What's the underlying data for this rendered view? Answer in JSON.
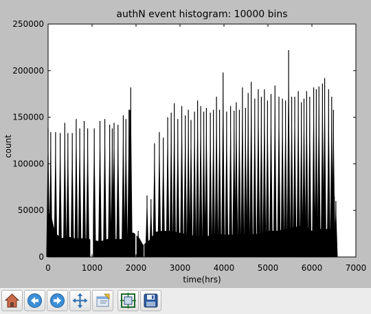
{
  "chart_data": {
    "type": "bar",
    "title": "authN event histogram: 10000 bins",
    "xlabel": "time(hrs)",
    "ylabel": "count",
    "xlim": [
      0,
      7000
    ],
    "ylim": [
      0,
      250000
    ],
    "xticks": [
      0,
      1000,
      2000,
      3000,
      4000,
      5000,
      6000,
      7000
    ],
    "yticks": [
      0,
      50000,
      100000,
      150000,
      200000,
      250000
    ],
    "xtick_labels": [
      "0",
      "1000",
      "2000",
      "3000",
      "4000",
      "5000",
      "6000",
      "7000"
    ],
    "ytick_labels": [
      "0",
      "50000",
      "100000",
      "150000",
      "200000",
      "250000"
    ],
    "grid": false,
    "legend": "none",
    "bar_color": "#000000",
    "data_end_x": 6560,
    "baseline": [
      [
        0,
        48000
      ],
      [
        70,
        45000
      ],
      [
        160,
        26000
      ],
      [
        300,
        20000
      ],
      [
        450,
        22000
      ],
      [
        600,
        20000
      ],
      [
        750,
        20000
      ],
      [
        900,
        20000
      ],
      [
        1000,
        18000
      ],
      [
        1200,
        17000
      ],
      [
        1400,
        20000
      ],
      [
        1600,
        19000
      ],
      [
        1800,
        20000
      ],
      [
        1900,
        26000
      ],
      [
        1950,
        26000
      ],
      [
        2080,
        20000
      ],
      [
        2160,
        13000
      ],
      [
        2300,
        18000
      ],
      [
        2450,
        27000
      ],
      [
        2600,
        28000
      ],
      [
        2800,
        28000
      ],
      [
        3000,
        26000
      ],
      [
        3200,
        24000
      ],
      [
        3400,
        22000
      ],
      [
        3600,
        22000
      ],
      [
        3800,
        25000
      ],
      [
        4000,
        24000
      ],
      [
        4200,
        24000
      ],
      [
        4400,
        25000
      ],
      [
        4600,
        24000
      ],
      [
        4800,
        25000
      ],
      [
        5000,
        28000
      ],
      [
        5200,
        28000
      ],
      [
        5400,
        30000
      ],
      [
        5600,
        32000
      ],
      [
        5800,
        34000
      ],
      [
        6000,
        28000
      ],
      [
        6200,
        30000
      ],
      [
        6400,
        30000
      ],
      [
        6560,
        30000
      ]
    ],
    "gaps": [
      [
        960,
        1020
      ],
      [
        1985,
        2010
      ],
      [
        2175,
        2190
      ]
    ],
    "peaks": [
      [
        0,
        138000
      ],
      [
        60,
        134000
      ],
      [
        170,
        134000
      ],
      [
        275,
        133000
      ],
      [
        380,
        144000
      ],
      [
        450,
        133000
      ],
      [
        550,
        133000
      ],
      [
        640,
        148000
      ],
      [
        720,
        138000
      ],
      [
        820,
        146000
      ],
      [
        900,
        138000
      ],
      [
        1050,
        138000
      ],
      [
        1180,
        146000
      ],
      [
        1290,
        148000
      ],
      [
        1400,
        142000
      ],
      [
        1460,
        138000
      ],
      [
        1500,
        144000
      ],
      [
        1590,
        142000
      ],
      [
        1710,
        152000
      ],
      [
        1770,
        148000
      ],
      [
        1840,
        158000
      ],
      [
        1860,
        158000
      ],
      [
        1880,
        182000
      ],
      [
        2050,
        28000
      ],
      [
        2250,
        66000
      ],
      [
        2340,
        62000
      ],
      [
        2420,
        122000
      ],
      [
        2530,
        134000
      ],
      [
        2620,
        128000
      ],
      [
        2720,
        150000
      ],
      [
        2800,
        155000
      ],
      [
        2870,
        165000
      ],
      [
        2950,
        148000
      ],
      [
        3040,
        162000
      ],
      [
        3120,
        152000
      ],
      [
        3190,
        158000
      ],
      [
        3250,
        147000
      ],
      [
        3330,
        156000
      ],
      [
        3400,
        168000
      ],
      [
        3470,
        162000
      ],
      [
        3540,
        156000
      ],
      [
        3600,
        160000
      ],
      [
        3690,
        155000
      ],
      [
        3760,
        158000
      ],
      [
        3830,
        172000
      ],
      [
        3900,
        158000
      ],
      [
        3980,
        198000
      ],
      [
        4060,
        156000
      ],
      [
        4150,
        162000
      ],
      [
        4230,
        157000
      ],
      [
        4280,
        166000
      ],
      [
        4350,
        158000
      ],
      [
        4420,
        182000
      ],
      [
        4490,
        160000
      ],
      [
        4550,
        176000
      ],
      [
        4620,
        188000
      ],
      [
        4700,
        170000
      ],
      [
        4780,
        180000
      ],
      [
        4850,
        172000
      ],
      [
        4920,
        180000
      ],
      [
        4990,
        168000
      ],
      [
        5070,
        175000
      ],
      [
        5160,
        184000
      ],
      [
        5250,
        172000
      ],
      [
        5330,
        170000
      ],
      [
        5400,
        168000
      ],
      [
        5470,
        222000
      ],
      [
        5540,
        172000
      ],
      [
        5610,
        172000
      ],
      [
        5690,
        178000
      ],
      [
        5760,
        166000
      ],
      [
        5820,
        170000
      ],
      [
        5880,
        178000
      ],
      [
        5950,
        172000
      ],
      [
        6040,
        182000
      ],
      [
        6100,
        180000
      ],
      [
        6160,
        183000
      ],
      [
        6240,
        186000
      ],
      [
        6290,
        192000
      ],
      [
        6380,
        180000
      ],
      [
        6450,
        172000
      ],
      [
        6490,
        158000
      ],
      [
        6510,
        65000
      ],
      [
        6545,
        60000
      ]
    ]
  },
  "toolbar": {
    "buttons": [
      {
        "name": "home-button",
        "icon": "home-icon"
      },
      {
        "name": "back-button",
        "icon": "back-arrow-icon"
      },
      {
        "name": "forward-button",
        "icon": "forward-arrow-icon"
      },
      {
        "name": "pan-button",
        "icon": "pan-move-icon"
      },
      {
        "name": "zoom-button",
        "icon": "zoom-rect-icon"
      },
      {
        "name": "subplots-button",
        "icon": "subplots-config-icon"
      },
      {
        "name": "save-button",
        "icon": "floppy-save-icon"
      }
    ]
  }
}
